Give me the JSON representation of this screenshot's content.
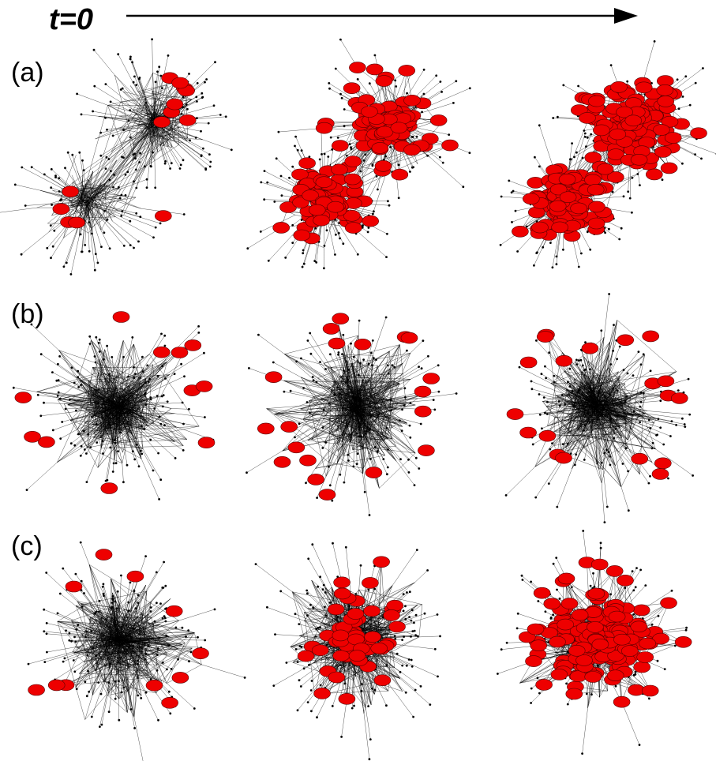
{
  "header": {
    "time_label": "t=0"
  },
  "rows": [
    {
      "label": "(a)",
      "panels": [
        {
          "state": "initial",
          "infected_share": 0.02,
          "structure": "two-communities"
        },
        {
          "state": "spreading",
          "infected_share": 0.55,
          "structure": "two-communities"
        },
        {
          "state": "late",
          "infected_share": 0.98,
          "structure": "two-communities"
        }
      ]
    },
    {
      "label": "(b)",
      "panels": [
        {
          "state": "initial",
          "infected_share": 0.02,
          "structure": "single-cluster"
        },
        {
          "state": "spreading",
          "infected_share": 0.05,
          "structure": "single-cluster"
        },
        {
          "state": "late",
          "infected_share": 0.05,
          "structure": "single-cluster"
        }
      ]
    },
    {
      "label": "(c)",
      "panels": [
        {
          "state": "initial",
          "infected_share": 0.02,
          "structure": "single-cluster"
        },
        {
          "state": "spreading",
          "infected_share": 0.2,
          "structure": "single-cluster"
        },
        {
          "state": "late",
          "infected_share": 0.9,
          "structure": "single-cluster"
        }
      ]
    }
  ],
  "colors": {
    "edge": "#000000",
    "node": "#000000",
    "infected": "#ee0000",
    "infected_outline": "#550000",
    "arrow": "#000000"
  }
}
